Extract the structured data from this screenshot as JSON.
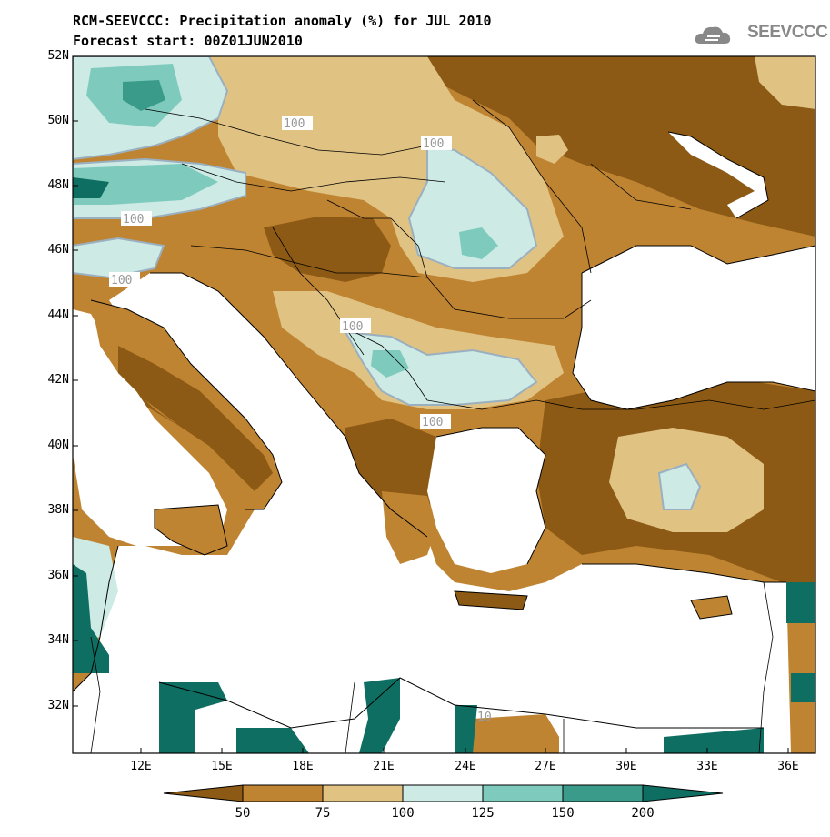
{
  "title": "RCM-SEEVCCC: Precipitation anomaly (%) for JUL 2010",
  "subtitle": "Forecast start: 00Z01JUN2010",
  "logo_text": "SEEVCCC",
  "lat_labels": [
    "52N",
    "50N",
    "48N",
    "46N",
    "44N",
    "42N",
    "40N",
    "38N",
    "36N",
    "34N",
    "32N"
  ],
  "lon_labels": [
    "12E",
    "15E",
    "18E",
    "21E",
    "24E",
    "27E",
    "30E",
    "33E",
    "36E"
  ],
  "contour_labels": [
    "100",
    "100",
    "100",
    "100",
    "100",
    "100",
    "10"
  ],
  "colorbar": {
    "labels": [
      "50",
      "75",
      "100",
      "125",
      "150",
      "200"
    ],
    "colors": [
      "#8c5a14",
      "#bf8432",
      "#e0c383",
      "#cdeae5",
      "#7ecbbd",
      "#3b9b8a",
      "#0f6e62"
    ]
  },
  "legend_colors": {
    "dark_brown": "#8c5a14",
    "brown": "#bf8432",
    "tan": "#e0c383",
    "pale_teal": "#cdeae5",
    "teal": "#7ecbbd",
    "dark_teal": "#0f6e62",
    "sea": "#ffffff"
  }
}
